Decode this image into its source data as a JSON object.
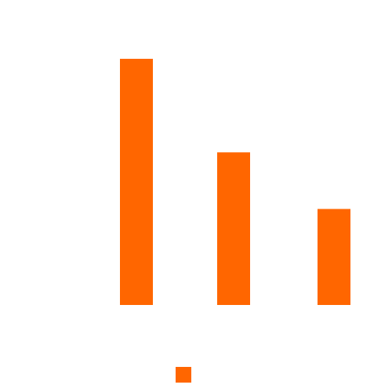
{
  "chart_data": {
    "type": "bar",
    "categories": [
      "",
      "",
      ""
    ],
    "values": [
      100,
      62,
      39
    ],
    "title": "",
    "xlabel": "",
    "ylabel": "",
    "ylim": [
      0,
      100
    ],
    "grid": false,
    "axes_visible": false,
    "legend": {
      "position": "bottom-center",
      "entries": [
        ""
      ]
    },
    "series": [
      {
        "color": "#ff6600",
        "values": [
          100,
          62,
          39
        ]
      }
    ]
  }
}
